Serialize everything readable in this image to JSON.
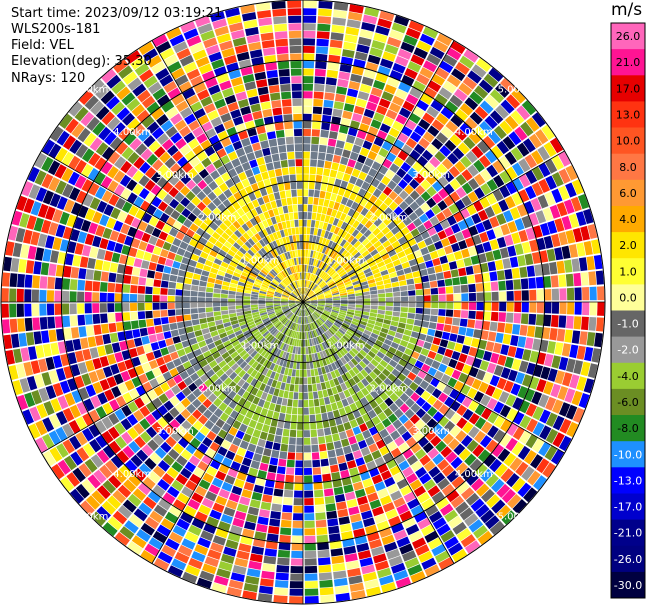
{
  "info": {
    "start_time": "Start time: 2023/09/12 03:19:21",
    "instrument": "WLS200s-181",
    "field": "Field: VEL",
    "elevation": "Elevation(deg): 35.30",
    "nrays": "NRays: 120"
  },
  "chart_data": {
    "type": "heatmap",
    "projection": "polar PPI",
    "field": "VEL",
    "rays": 120,
    "range_rings_km": [
      1.0,
      2.0,
      3.0,
      4.0,
      5.0
    ],
    "max_range_km": 5.0,
    "ring_labels": [
      "1.00km",
      "2.00km",
      "3.00km",
      "4.00km",
      "5.00km"
    ],
    "colorbar": {
      "unit": "m/s",
      "tick_labels": [
        "26.0",
        "21.0",
        "17.0",
        "13.0",
        "10.0",
        "8.0",
        "6.0",
        "4.0",
        "2.0",
        "1.0",
        "0.0",
        "-1.0",
        "-2.0",
        "-4.0",
        "-6.0",
        "-8.0",
        "-10.0",
        "-13.0",
        "-17.0",
        "-21.0",
        "-26.0",
        "-30.0"
      ],
      "colors": [
        "#ff66bb",
        "#ff1493",
        "#e60000",
        "#ff3311",
        "#ff5522",
        "#ff7744",
        "#ff9933",
        "#ffaa00",
        "#ffe600",
        "#ffff33",
        "#ffff99",
        "#666666",
        "#999999",
        "#9acd32",
        "#6b8e23",
        "#228b22",
        "#1e90ff",
        "#0000ff",
        "#0000cd",
        "#00008b",
        "#000080",
        "#000040"
      ]
    },
    "pattern": {
      "near_field_north": "positive ~2-4 m/s (yellow)",
      "near_field_south": "negative ~-1 to -4 m/s (green)",
      "far_field": "noise, all colors"
    }
  }
}
